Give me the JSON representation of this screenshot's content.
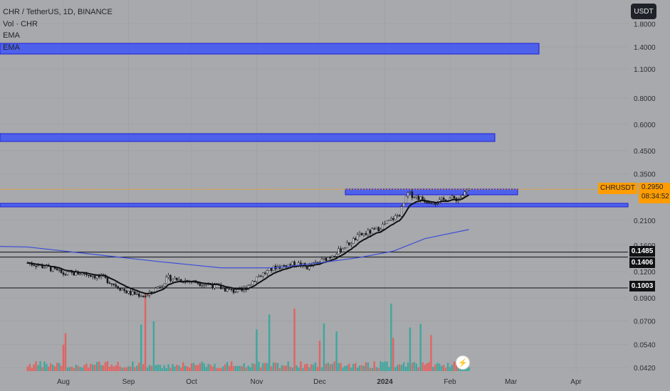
{
  "legend": {
    "symbol": "CHR / TetherUS, 1D, BINANCE",
    "vol": "Vol · CHR",
    "ema1": "EMA",
    "ema2": "EMA"
  },
  "currency_button": "USDT",
  "price_tag": {
    "symbol": "CHRUSDT",
    "price": "0.2950",
    "countdown": "08:34:52"
  },
  "level_tags": [
    "0.1485",
    "0.1406",
    "0.1003"
  ],
  "icons": {
    "flash": "flash-icon"
  },
  "colors": {
    "background": "#a7a9ac",
    "zone_fill": "#2f49ff",
    "ema_line": "#3d4ed8",
    "price_tag": "#ff9c00",
    "volume_up": "#26a69a",
    "volume_down": "#ef5350"
  },
  "chart_data": {
    "type": "candlestick",
    "scale": "log",
    "y_ticks": [
      "1.8000",
      "1.4000",
      "1.1000",
      "0.8000",
      "0.6000",
      "0.4500",
      "0.3500",
      "0.2100",
      "0.1600",
      "0.1200",
      "0.0900",
      "0.0700",
      "0.0540",
      "0.0420"
    ],
    "x_ticks": [
      "Aug",
      "Sep",
      "Oct",
      "Nov",
      "Dec",
      "2024",
      "Feb",
      "Mar",
      "Apr"
    ],
    "last_price": 0.295,
    "horizontal_levels": [
      0.1485,
      0.1406,
      0.1003
    ],
    "price_path": [
      [
        "2023-07-15",
        0.132
      ],
      [
        "2023-07-25",
        0.125
      ],
      [
        "2023-08-01",
        0.117
      ],
      [
        "2023-08-10",
        0.118
      ],
      [
        "2023-08-20",
        0.112
      ],
      [
        "2023-09-01",
        0.095
      ],
      [
        "2023-09-10",
        0.092
      ],
      [
        "2023-09-20",
        0.112
      ],
      [
        "2023-09-30",
        0.108
      ],
      [
        "2023-10-10",
        0.104
      ],
      [
        "2023-10-20",
        0.097
      ],
      [
        "2023-10-25",
        0.097
      ],
      [
        "2023-11-01",
        0.113
      ],
      [
        "2023-11-10",
        0.126
      ],
      [
        "2023-11-20",
        0.131
      ],
      [
        "2023-11-25",
        0.126
      ],
      [
        "2023-12-01",
        0.133
      ],
      [
        "2023-12-10",
        0.15
      ],
      [
        "2023-12-20",
        0.178
      ],
      [
        "2023-12-28",
        0.19
      ],
      [
        "2024-01-03",
        0.208
      ],
      [
        "2024-01-08",
        0.225
      ],
      [
        "2024-01-12",
        0.282
      ],
      [
        "2024-01-20",
        0.262
      ],
      [
        "2024-01-26",
        0.257
      ],
      [
        "2024-02-01",
        0.268
      ],
      [
        "2024-02-05",
        0.265
      ],
      [
        "2024-02-10",
        0.295
      ]
    ],
    "ema_slow": [
      [
        "2023-07-15",
        0.157
      ],
      [
        "2023-08-15",
        0.145
      ],
      [
        "2023-09-15",
        0.134
      ],
      [
        "2023-10-15",
        0.125
      ],
      [
        "2023-11-10",
        0.125
      ],
      [
        "2023-12-01",
        0.132
      ],
      [
        "2023-12-20",
        0.14
      ],
      [
        "2024-01-05",
        0.15
      ],
      [
        "2024-01-20",
        0.172
      ],
      [
        "2024-02-10",
        0.19
      ]
    ]
  }
}
